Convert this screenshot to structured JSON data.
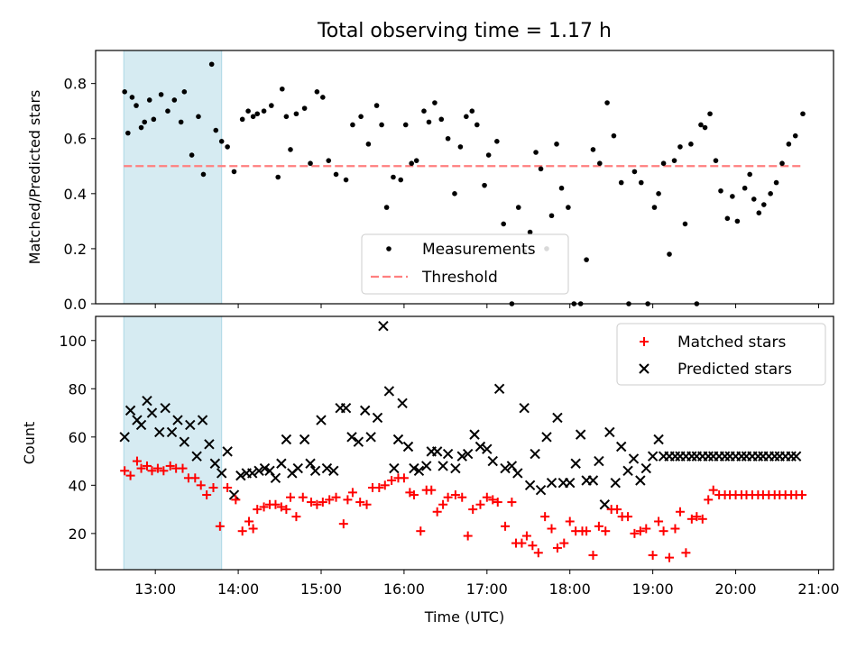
{
  "title": "Total observing time = 1.17 h",
  "colors": {
    "measurement": "#000000",
    "threshold": "#ff7f7f",
    "matched": "#ff0000",
    "predicted": "#000000",
    "highlight_fill": "#add8e6"
  },
  "chart_data": [
    {
      "type": "scatter",
      "name": "ratio-panel",
      "ylabel": "Matched/Predicted stars",
      "xlim_hours": [
        12.28,
        21.18
      ],
      "ylim": [
        0,
        0.92
      ],
      "yticks": [
        0.0,
        0.2,
        0.4,
        0.6,
        0.8
      ],
      "ytick_labels": [
        "0.0",
        "0.2",
        "0.4",
        "0.6",
        "0.8"
      ],
      "highlight_span_hours": [
        12.62,
        13.8
      ],
      "threshold": {
        "label": "Threshold",
        "y": 0.5,
        "x_range_hours": [
          12.62,
          20.82
        ]
      },
      "legend": {
        "placement": "lower center",
        "entries": [
          "Measurements",
          "Threshold"
        ]
      },
      "series": [
        {
          "name": "Measurements",
          "x_hours": [
            12.63,
            12.67,
            12.72,
            12.77,
            12.83,
            12.87,
            12.93,
            12.98,
            13.07,
            13.15,
            13.23,
            13.31,
            13.35,
            13.44,
            13.52,
            13.58,
            13.68,
            13.73,
            13.8,
            13.87,
            13.95,
            14.05,
            14.12,
            14.18,
            14.23,
            14.31,
            14.4,
            14.48,
            14.53,
            14.58,
            14.63,
            14.7,
            14.8,
            14.87,
            14.95,
            15.02,
            15.09,
            15.18,
            15.3,
            15.38,
            15.48,
            15.57,
            15.67,
            15.73,
            15.79,
            15.87,
            15.96,
            16.02,
            16.09,
            16.15,
            16.24,
            16.3,
            16.37,
            16.45,
            16.53,
            16.61,
            16.68,
            16.75,
            16.82,
            16.88,
            16.97,
            17.02,
            17.12,
            17.2,
            17.3,
            17.38,
            17.45,
            17.52,
            17.59,
            17.65,
            17.72,
            17.78,
            17.84,
            17.9,
            17.98,
            18.05,
            18.13,
            18.2,
            18.28,
            18.36,
            18.45,
            18.53,
            18.62,
            18.71,
            18.78,
            18.86,
            18.94,
            19.02,
            19.07,
            19.13,
            19.2,
            19.26,
            19.33,
            19.39,
            19.46,
            19.53,
            19.58,
            19.63,
            19.69,
            19.76,
            19.82,
            19.9,
            19.96,
            20.02,
            20.11,
            20.17,
            20.22,
            20.28,
            20.34,
            20.42,
            20.49,
            20.56,
            20.64,
            20.72,
            20.81
          ],
          "y": [
            0.77,
            0.62,
            0.75,
            0.72,
            0.64,
            0.66,
            0.74,
            0.67,
            0.76,
            0.7,
            0.74,
            0.66,
            0.77,
            0.54,
            0.68,
            0.47,
            0.87,
            0.63,
            0.59,
            0.57,
            0.48,
            0.67,
            0.7,
            0.68,
            0.69,
            0.7,
            0.72,
            0.46,
            0.78,
            0.68,
            0.56,
            0.69,
            0.71,
            0.51,
            0.77,
            0.75,
            0.52,
            0.47,
            0.45,
            0.65,
            0.68,
            0.58,
            0.72,
            0.65,
            0.35,
            0.46,
            0.45,
            0.65,
            0.51,
            0.52,
            0.7,
            0.66,
            0.73,
            0.67,
            0.6,
            0.4,
            0.57,
            0.68,
            0.7,
            0.65,
            0.43,
            0.54,
            0.59,
            0.29,
            0.0,
            0.35,
            0.19,
            0.26,
            0.55,
            0.49,
            0.2,
            0.32,
            0.58,
            0.42,
            0.35,
            0.0,
            0.0,
            0.16,
            0.56,
            0.51,
            0.73,
            0.61,
            0.44,
            0.0,
            0.48,
            0.44,
            0.0,
            0.35,
            0.4,
            0.51,
            0.18,
            0.52,
            0.57,
            0.29,
            0.58,
            0.0,
            0.65,
            0.64,
            0.69,
            0.52,
            0.41,
            0.31,
            0.39,
            0.3,
            0.42,
            0.47,
            0.38,
            0.33,
            0.36,
            0.4,
            0.44,
            0.51,
            0.58,
            0.61,
            0.69
          ]
        }
      ]
    },
    {
      "type": "scatter",
      "name": "count-panel",
      "xlabel": "Time (UTC)",
      "ylabel": "Count",
      "xlim_hours": [
        12.28,
        21.18
      ],
      "ylim": [
        5,
        110
      ],
      "xticks_hours": [
        13,
        14,
        15,
        16,
        17,
        18,
        19,
        20,
        21
      ],
      "xtick_labels": [
        "13:00",
        "14:00",
        "15:00",
        "16:00",
        "17:00",
        "18:00",
        "19:00",
        "20:00",
        "21:00"
      ],
      "yticks": [
        20,
        40,
        60,
        80,
        100
      ],
      "ytick_labels": [
        "20",
        "40",
        "60",
        "80",
        "100"
      ],
      "highlight_span_hours": [
        12.62,
        13.8
      ],
      "legend": {
        "placement": "upper right",
        "entries": [
          "Matched stars",
          "Predicted stars"
        ]
      },
      "series": [
        {
          "name": "Matched stars",
          "x_hours": [
            12.63,
            12.7,
            12.78,
            12.83,
            12.9,
            12.96,
            13.03,
            13.1,
            13.18,
            13.25,
            13.33,
            13.4,
            13.48,
            13.55,
            13.62,
            13.7,
            13.78,
            13.87,
            13.97,
            14.05,
            14.13,
            14.18,
            14.23,
            14.31,
            14.38,
            14.45,
            14.52,
            14.58,
            14.63,
            14.7,
            14.78,
            14.88,
            14.95,
            15.02,
            15.1,
            15.18,
            15.27,
            15.32,
            15.38,
            15.47,
            15.55,
            15.62,
            15.7,
            15.77,
            15.85,
            15.93,
            16.0,
            16.07,
            16.12,
            16.2,
            16.27,
            16.33,
            16.4,
            16.47,
            16.53,
            16.62,
            16.7,
            16.77,
            16.83,
            16.92,
            17.0,
            17.07,
            17.13,
            17.22,
            17.3,
            17.35,
            17.42,
            17.48,
            17.55,
            17.62,
            17.7,
            17.78,
            17.85,
            17.93,
            18.0,
            18.07,
            18.15,
            18.2,
            18.28,
            18.35,
            18.43,
            18.5,
            18.57,
            18.63,
            18.7,
            18.78,
            18.85,
            18.92,
            19.0,
            19.07,
            19.13,
            19.2,
            19.27,
            19.33,
            19.4,
            19.47,
            19.53,
            19.6,
            19.67,
            19.73,
            19.8,
            19.87,
            19.93,
            20.0,
            20.07,
            20.13,
            20.2,
            20.27,
            20.33,
            20.4,
            20.47,
            20.53,
            20.6,
            20.67,
            20.73,
            20.8
          ],
          "y": [
            46,
            44,
            50,
            47,
            48,
            46,
            47,
            46,
            48,
            47,
            47,
            43,
            43,
            40,
            36,
            39,
            23,
            39,
            34,
            21,
            25,
            22,
            30,
            31,
            32,
            32,
            31,
            30,
            35,
            27,
            35,
            33,
            32,
            33,
            34,
            35,
            24,
            34,
            37,
            33,
            32,
            39,
            39,
            40,
            42,
            43,
            43,
            37,
            36,
            21,
            38,
            38,
            29,
            32,
            35,
            36,
            35,
            19,
            30,
            32,
            35,
            34,
            33,
            23,
            33,
            16,
            16,
            19,
            15,
            12,
            27,
            22,
            14,
            16,
            25,
            21,
            21,
            21,
            11,
            23,
            21,
            30,
            30,
            27,
            27,
            20,
            21,
            22,
            11,
            25,
            21,
            10,
            22,
            29,
            12,
            26,
            27,
            26,
            34,
            38,
            36,
            36,
            36,
            36,
            36,
            36,
            36,
            36,
            36,
            36,
            36,
            36,
            36,
            36,
            36,
            36
          ],
          "note": "trailing values beyond the last visible marker are not rendered"
        },
        {
          "name": "Predicted stars",
          "x_hours": [
            12.63,
            12.7,
            12.78,
            12.83,
            12.9,
            12.96,
            13.05,
            13.12,
            13.2,
            13.27,
            13.35,
            13.42,
            13.5,
            13.57,
            13.65,
            13.72,
            13.8,
            13.87,
            13.95,
            14.03,
            14.1,
            14.17,
            14.25,
            14.32,
            14.38,
            14.45,
            14.52,
            14.58,
            14.65,
            14.72,
            14.8,
            14.87,
            14.93,
            15.0,
            15.07,
            15.15,
            15.23,
            15.3,
            15.37,
            15.45,
            15.53,
            15.6,
            15.68,
            15.75,
            15.82,
            15.88,
            15.93,
            15.98,
            16.05,
            16.12,
            16.18,
            16.27,
            16.33,
            16.4,
            16.47,
            16.53,
            16.62,
            16.7,
            16.77,
            16.85,
            16.92,
            17.0,
            17.07,
            17.15,
            17.22,
            17.3,
            17.37,
            17.45,
            17.52,
            17.58,
            17.65,
            17.72,
            17.78,
            17.85,
            17.92,
            18.0,
            18.07,
            18.13,
            18.2,
            18.28,
            18.35,
            18.42,
            18.48,
            18.55,
            18.62,
            18.7,
            18.77,
            18.85,
            18.92,
            19.0,
            19.07,
            19.13,
            19.2,
            19.27,
            19.33,
            19.4,
            19.47,
            19.53,
            19.6,
            19.67,
            19.73,
            19.8,
            19.87,
            19.93,
            20.0,
            20.07,
            20.13,
            20.2,
            20.27,
            20.33,
            20.4,
            20.47,
            20.53,
            20.6,
            20.67,
            20.73
          ],
          "y": [
            60,
            71,
            67,
            65,
            75,
            70,
            62,
            72,
            62,
            67,
            58,
            65,
            52,
            67,
            57,
            49,
            45,
            54,
            36,
            44,
            45,
            45,
            46,
            47,
            46,
            43,
            49,
            59,
            45,
            47,
            59,
            49,
            46,
            67,
            47,
            46,
            72,
            72,
            60,
            58,
            71,
            60,
            68,
            106,
            79,
            47,
            59,
            74,
            56,
            47,
            46,
            48,
            54,
            54,
            48,
            53,
            47,
            52,
            53,
            61,
            56,
            55,
            50,
            80,
            47,
            48,
            45,
            72,
            40,
            53,
            38,
            60,
            41,
            68,
            41,
            41,
            49,
            61,
            42,
            42,
            50,
            32,
            62,
            41,
            56,
            46,
            51,
            42,
            47,
            52,
            59,
            52,
            52,
            52,
            52,
            52,
            52,
            52,
            52,
            52,
            52,
            52,
            52,
            52,
            52,
            52,
            52,
            52,
            52,
            52,
            52,
            52,
            52,
            52,
            52,
            52
          ],
          "note": "trailing values beyond the last visible marker are not rendered"
        }
      ]
    }
  ]
}
